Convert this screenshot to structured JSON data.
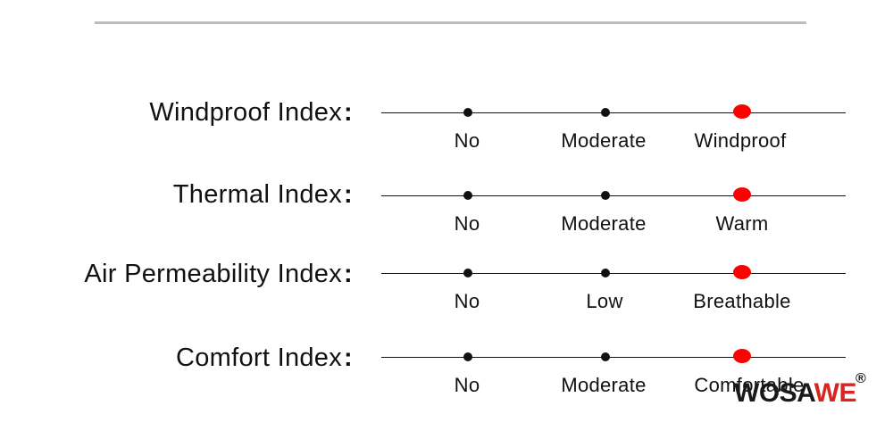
{
  "rows": [
    {
      "label": "Windproof Index",
      "colon": ":",
      "levels": [
        "No",
        "Moderate",
        "Windproof"
      ],
      "selected_level": 3
    },
    {
      "label": "Thermal Index",
      "colon": ":",
      "levels": [
        "No",
        "Moderate",
        "Warm"
      ],
      "selected_level": 3
    },
    {
      "label": "Air Permeability Index",
      "colon": ":",
      "levels": [
        "No",
        "Low",
        "Breathable"
      ],
      "selected_level": 3
    },
    {
      "label": "Comfort Index",
      "colon": ":",
      "levels": [
        "No",
        "Moderate",
        "Comfortable"
      ],
      "selected_level": 3
    }
  ],
  "logo": {
    "part1": "WOSA",
    "part2": "WE",
    "registered": "®"
  },
  "colors": {
    "active_dot": "#ff0000",
    "line": "#111111",
    "logo_red": "#d6261f",
    "rule": "#bdbdbd"
  }
}
